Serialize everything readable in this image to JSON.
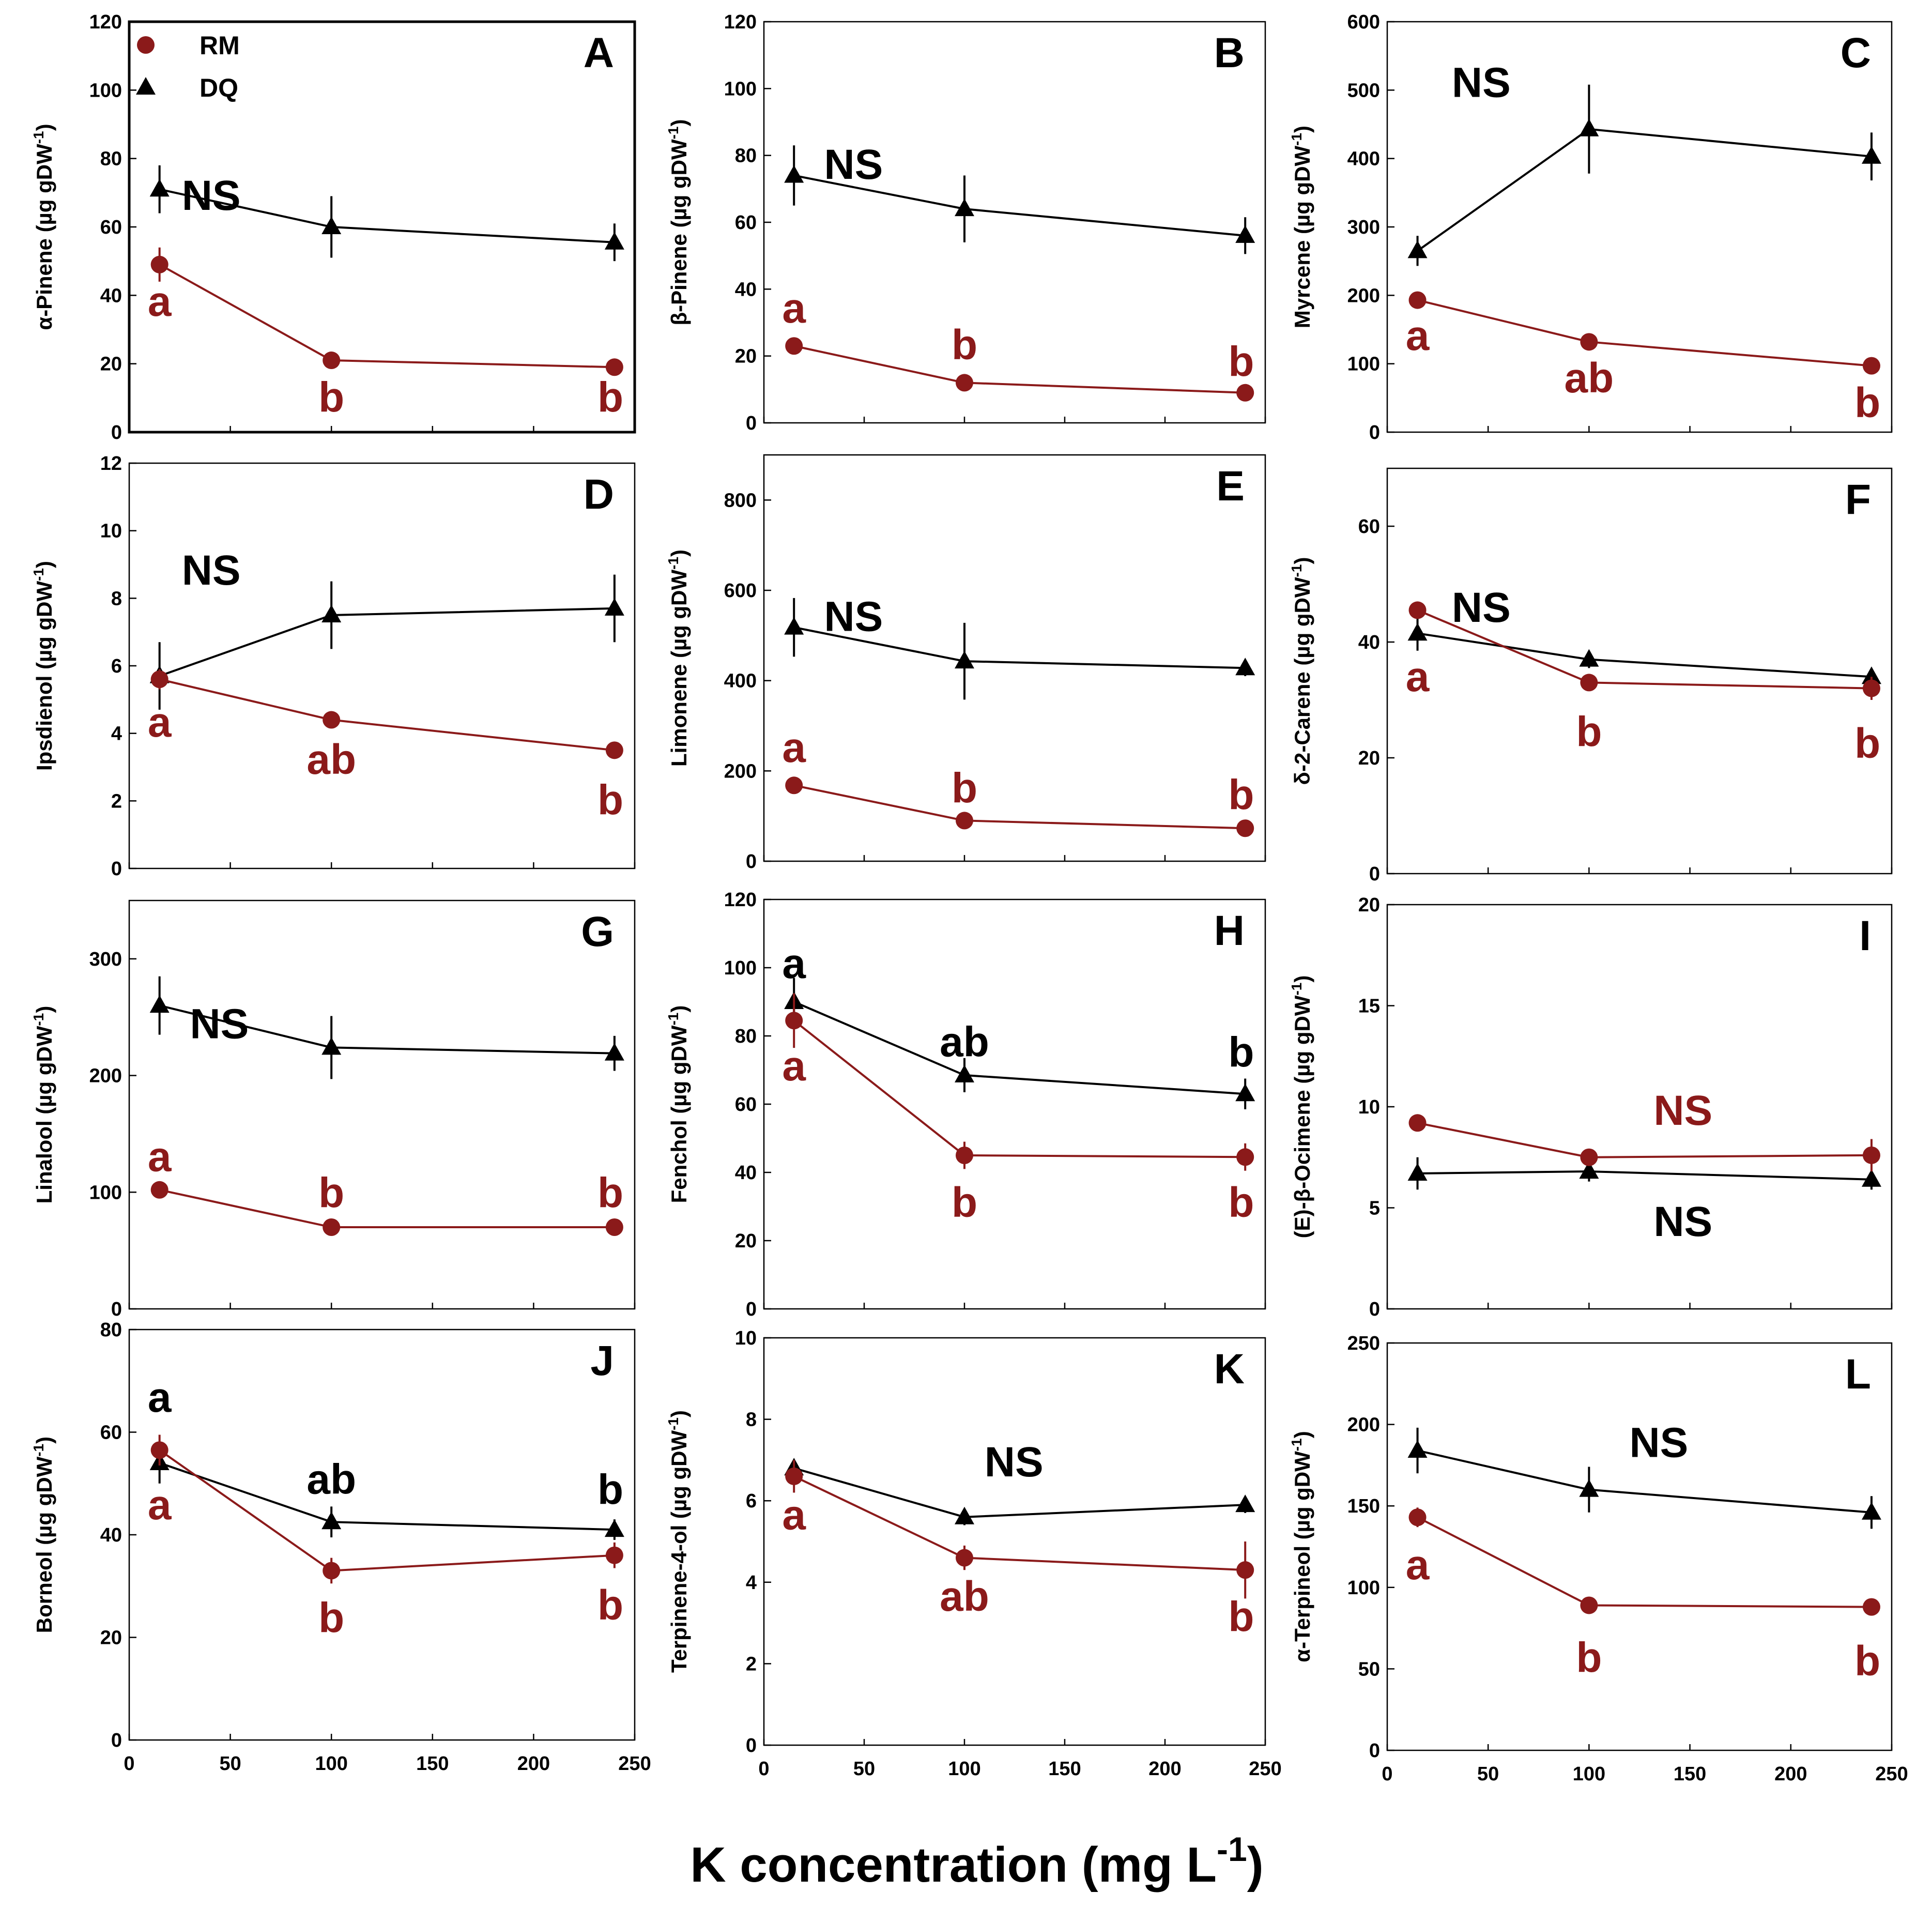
{
  "figure": {
    "xlabel": "K concentration (mg L",
    "xlabel_sup": "-1",
    "xlabel_close": ")"
  },
  "colors": {
    "RM": "#8b1a1a",
    "DQ": "#000000"
  },
  "chart_data": [
    {
      "letter": "A",
      "ylabel": "α-Pinene (µg gDW",
      "ylim": [
        0,
        120
      ],
      "yticks": [
        0,
        20,
        40,
        60,
        80,
        100,
        120
      ],
      "xlim": [
        0,
        250
      ],
      "xticks": [],
      "legend": [
        {
          "name": "RM",
          "marker": "circle"
        },
        {
          "name": "DQ",
          "marker": "triangle"
        }
      ],
      "series": [
        {
          "name": "DQ",
          "x": [
            15,
            100,
            240
          ],
          "y": [
            71,
            60,
            55.5
          ],
          "err": [
            7,
            9,
            5.5
          ]
        },
        {
          "name": "RM",
          "x": [
            15,
            100,
            240
          ],
          "y": [
            49,
            21,
            19
          ],
          "err": [
            5,
            2,
            1.5
          ]
        }
      ],
      "annotations": [
        {
          "text": "NS",
          "x": 26,
          "y": 65,
          "color": "DQ"
        },
        {
          "text": "a",
          "x": 15,
          "y": 34,
          "color": "RM"
        },
        {
          "text": "b",
          "x": 100,
          "y": 6,
          "color": "RM"
        },
        {
          "text": "b",
          "x": 238,
          "y": 6,
          "color": "RM"
        }
      ]
    },
    {
      "letter": "B",
      "ylabel": "β-Pinene (µg gDW",
      "ylim": [
        0,
        120
      ],
      "yticks": [
        0,
        20,
        40,
        60,
        80,
        100,
        120
      ],
      "xlim": [
        0,
        250
      ],
      "xticks": [],
      "series": [
        {
          "name": "DQ",
          "x": [
            15,
            100,
            240
          ],
          "y": [
            74,
            64,
            56
          ],
          "err": [
            9,
            10,
            5.5
          ]
        },
        {
          "name": "RM",
          "x": [
            15,
            100,
            240
          ],
          "y": [
            23,
            12,
            9
          ],
          "err": [
            2,
            1.5,
            1
          ]
        }
      ],
      "annotations": [
        {
          "text": "NS",
          "x": 30,
          "y": 73,
          "color": "DQ"
        },
        {
          "text": "a",
          "x": 15,
          "y": 30,
          "color": "RM"
        },
        {
          "text": "b",
          "x": 100,
          "y": 19,
          "color": "RM"
        },
        {
          "text": "b",
          "x": 238,
          "y": 14,
          "color": "RM"
        }
      ]
    },
    {
      "letter": "C",
      "ylabel": "Myrcene (µg gDW",
      "ylim": [
        0,
        600
      ],
      "yticks": [
        0,
        100,
        200,
        300,
        400,
        500,
        600
      ],
      "xlim": [
        0,
        250
      ],
      "xticks": [],
      "series": [
        {
          "name": "DQ",
          "x": [
            15,
            100,
            240
          ],
          "y": [
            265,
            443,
            403
          ],
          "err": [
            22,
            65,
            35
          ]
        },
        {
          "name": "RM",
          "x": [
            15,
            100,
            240
          ],
          "y": [
            193,
            132,
            97
          ],
          "err": [
            8,
            12,
            6
          ]
        }
      ],
      "annotations": [
        {
          "text": "NS",
          "x": 32,
          "y": 490,
          "color": "DQ"
        },
        {
          "text": "a",
          "x": 15,
          "y": 120,
          "color": "RM"
        },
        {
          "text": "ab",
          "x": 100,
          "y": 58,
          "color": "RM"
        },
        {
          "text": "b",
          "x": 238,
          "y": 22,
          "color": "RM"
        }
      ]
    },
    {
      "letter": "D",
      "ylabel": "Ipsdienol (µg gDW",
      "ylim": [
        0,
        12
      ],
      "yticks": [
        0,
        2,
        4,
        6,
        8,
        10,
        12
      ],
      "xlim": [
        0,
        250
      ],
      "xticks": [],
      "series": [
        {
          "name": "DQ",
          "x": [
            15,
            100,
            240
          ],
          "y": [
            5.7,
            7.5,
            7.7
          ],
          "err": [
            1,
            1,
            1
          ]
        },
        {
          "name": "RM",
          "x": [
            15,
            100,
            240
          ],
          "y": [
            5.6,
            4.4,
            3.5
          ],
          "err": [
            0.3,
            0.2,
            0.2
          ]
        }
      ],
      "annotations": [
        {
          "text": "NS",
          "x": 26,
          "y": 8.4,
          "color": "DQ"
        },
        {
          "text": "a",
          "x": 15,
          "y": 3.9,
          "color": "RM"
        },
        {
          "text": "ab",
          "x": 100,
          "y": 2.8,
          "color": "RM"
        },
        {
          "text": "b",
          "x": 238,
          "y": 1.6,
          "color": "RM"
        }
      ]
    },
    {
      "letter": "E",
      "ylabel": "Limonene (µg gDW",
      "ylim": [
        0,
        900
      ],
      "yticks": [
        0,
        200,
        400,
        600,
        800
      ],
      "xlim": [
        0,
        250
      ],
      "xticks": [],
      "series": [
        {
          "name": "DQ",
          "x": [
            15,
            100,
            240
          ],
          "y": [
            518,
            443,
            428
          ],
          "err": [
            65,
            85,
            18
          ]
        },
        {
          "name": "RM",
          "x": [
            15,
            100,
            240
          ],
          "y": [
            168,
            90,
            73
          ],
          "err": [
            10,
            8,
            6
          ]
        }
      ],
      "annotations": [
        {
          "text": "NS",
          "x": 30,
          "y": 510,
          "color": "DQ"
        },
        {
          "text": "a",
          "x": 15,
          "y": 220,
          "color": "RM"
        },
        {
          "text": "b",
          "x": 100,
          "y": 130,
          "color": "RM"
        },
        {
          "text": "b",
          "x": 238,
          "y": 115,
          "color": "RM"
        }
      ]
    },
    {
      "letter": "F",
      "ylabel": "δ-2-Carene (µg gDW",
      "ylim": [
        0,
        70
      ],
      "yticks": [
        0,
        20,
        40,
        60
      ],
      "xlim": [
        0,
        250
      ],
      "xticks": [],
      "series": [
        {
          "name": "DQ",
          "x": [
            15,
            100,
            240
          ],
          "y": [
            41.5,
            37,
            34
          ],
          "err": [
            3,
            1.5,
            1.2
          ]
        },
        {
          "name": "RM",
          "x": [
            15,
            100,
            240
          ],
          "y": [
            45.5,
            33,
            32
          ],
          "err": [
            1.2,
            1.2,
            2
          ]
        }
      ],
      "annotations": [
        {
          "text": "NS",
          "x": 32,
          "y": 43.5,
          "color": "DQ"
        },
        {
          "text": "a",
          "x": 15,
          "y": 31.5,
          "color": "RM"
        },
        {
          "text": "b",
          "x": 100,
          "y": 22,
          "color": "RM"
        },
        {
          "text": "b",
          "x": 238,
          "y": 20,
          "color": "RM"
        }
      ]
    },
    {
      "letter": "G",
      "ylabel": "Linalool (µg gDW",
      "ylim": [
        0,
        350
      ],
      "yticks": [
        0,
        100,
        200,
        300
      ],
      "xlim": [
        0,
        250
      ],
      "xticks": [],
      "series": [
        {
          "name": "DQ",
          "x": [
            15,
            100,
            240
          ],
          "y": [
            260,
            224,
            219
          ],
          "err": [
            25,
            27,
            15
          ]
        },
        {
          "name": "RM",
          "x": [
            15,
            100,
            240
          ],
          "y": [
            102,
            70,
            70
          ],
          "err": [
            4,
            4,
            4
          ]
        }
      ],
      "annotations": [
        {
          "text": "NS",
          "x": 30,
          "y": 232,
          "color": "DQ"
        },
        {
          "text": "a",
          "x": 15,
          "y": 118,
          "color": "RM"
        },
        {
          "text": "b",
          "x": 100,
          "y": 87,
          "color": "RM"
        },
        {
          "text": "b",
          "x": 238,
          "y": 87,
          "color": "RM"
        }
      ]
    },
    {
      "letter": "H",
      "ylabel": "Fenchol (µg gDW",
      "ylim": [
        0,
        120
      ],
      "yticks": [
        0,
        20,
        40,
        60,
        80,
        100,
        120
      ],
      "xlim": [
        0,
        250
      ],
      "xticks": [],
      "series": [
        {
          "name": "DQ",
          "x": [
            15,
            100,
            240
          ],
          "y": [
            90,
            68.5,
            63
          ],
          "err": [
            7,
            5,
            4.5
          ]
        },
        {
          "name": "RM",
          "x": [
            15,
            100,
            240
          ],
          "y": [
            84.5,
            45,
            44.5
          ],
          "err": [
            8,
            4,
            4
          ]
        }
      ],
      "annotations": [
        {
          "text": "a",
          "x": 15,
          "y": 97,
          "color": "DQ"
        },
        {
          "text": "ab",
          "x": 100,
          "y": 74,
          "color": "DQ"
        },
        {
          "text": "b",
          "x": 238,
          "y": 71,
          "color": "DQ"
        },
        {
          "text": "a",
          "x": 15,
          "y": 67,
          "color": "RM"
        },
        {
          "text": "b",
          "x": 100,
          "y": 27,
          "color": "RM"
        },
        {
          "text": "b",
          "x": 238,
          "y": 27,
          "color": "RM"
        }
      ]
    },
    {
      "letter": "I",
      "ylabel": "(E)-β-Ocimene (µg gDW",
      "ylim": [
        0,
        20
      ],
      "yticks": [
        0,
        5,
        10,
        15,
        20
      ],
      "xlim": [
        0,
        250
      ],
      "xticks": [],
      "series": [
        {
          "name": "DQ",
          "x": [
            15,
            100,
            240
          ],
          "y": [
            6.7,
            6.8,
            6.4
          ],
          "err": [
            0.8,
            0.5,
            0.5
          ]
        },
        {
          "name": "RM",
          "x": [
            15,
            100,
            240
          ],
          "y": [
            9.2,
            7.5,
            7.6
          ],
          "err": [
            0.3,
            0.3,
            0.8
          ]
        }
      ],
      "annotations": [
        {
          "text": "NS",
          "x": 132,
          "y": 9.1,
          "color": "RM"
        },
        {
          "text": "NS",
          "x": 132,
          "y": 3.6,
          "color": "DQ"
        }
      ]
    },
    {
      "letter": "J",
      "ylabel": "Borneol (µg gDW",
      "ylim": [
        0,
        80
      ],
      "yticks": [
        0,
        20,
        40,
        60,
        80
      ],
      "xlim": [
        0,
        250
      ],
      "xticks": [
        0,
        50,
        100,
        150,
        200,
        250
      ],
      "series": [
        {
          "name": "DQ",
          "x": [
            15,
            100,
            240
          ],
          "y": [
            54,
            42.5,
            41
          ],
          "err": [
            4,
            3,
            2
          ]
        },
        {
          "name": "RM",
          "x": [
            15,
            100,
            240
          ],
          "y": [
            56.5,
            33,
            36
          ],
          "err": [
            3,
            2.5,
            2.5
          ]
        }
      ],
      "annotations": [
        {
          "text": "a",
          "x": 15,
          "y": 64,
          "color": "DQ"
        },
        {
          "text": "ab",
          "x": 100,
          "y": 48,
          "color": "DQ"
        },
        {
          "text": "b",
          "x": 238,
          "y": 46,
          "color": "DQ"
        },
        {
          "text": "a",
          "x": 15,
          "y": 43,
          "color": "RM"
        },
        {
          "text": "b",
          "x": 100,
          "y": 21,
          "color": "RM"
        },
        {
          "text": "b",
          "x": 238,
          "y": 23.5,
          "color": "RM"
        }
      ]
    },
    {
      "letter": "K",
      "ylabel": "Terpinene-4-ol (µg gDW",
      "ylim": [
        0,
        10
      ],
      "yticks": [
        0,
        2,
        4,
        6,
        8,
        10
      ],
      "xlim": [
        0,
        250
      ],
      "xticks": [
        0,
        50,
        100,
        150,
        200,
        250
      ],
      "series": [
        {
          "name": "DQ",
          "x": [
            15,
            100,
            240
          ],
          "y": [
            6.8,
            5.6,
            5.9
          ],
          "err": [
            0.2,
            0.2,
            0.2
          ]
        },
        {
          "name": "RM",
          "x": [
            15,
            100,
            240
          ],
          "y": [
            6.6,
            4.6,
            4.3
          ],
          "err": [
            0.4,
            0.3,
            0.7
          ]
        }
      ],
      "annotations": [
        {
          "text": "NS",
          "x": 110,
          "y": 6.6,
          "color": "DQ"
        },
        {
          "text": "a",
          "x": 15,
          "y": 5.3,
          "color": "RM"
        },
        {
          "text": "ab",
          "x": 100,
          "y": 3.3,
          "color": "RM"
        },
        {
          "text": "b",
          "x": 238,
          "y": 2.8,
          "color": "RM"
        }
      ]
    },
    {
      "letter": "L",
      "ylabel": "α-Terpineol (µg gDW",
      "ylim": [
        0,
        250
      ],
      "yticks": [
        0,
        50,
        100,
        150,
        200,
        250
      ],
      "xlim": [
        0,
        250
      ],
      "xticks": [
        0,
        50,
        100,
        150,
        200,
        250
      ],
      "series": [
        {
          "name": "DQ",
          "x": [
            15,
            100,
            240
          ],
          "y": [
            184,
            160,
            146
          ],
          "err": [
            14,
            14,
            10
          ]
        },
        {
          "name": "RM",
          "x": [
            15,
            100,
            240
          ],
          "y": [
            143,
            89,
            88
          ],
          "err": [
            6,
            4,
            5
          ]
        }
      ],
      "annotations": [
        {
          "text": "NS",
          "x": 120,
          "y": 180,
          "color": "DQ"
        },
        {
          "text": "a",
          "x": 15,
          "y": 105,
          "color": "RM"
        },
        {
          "text": "b",
          "x": 100,
          "y": 48,
          "color": "RM"
        },
        {
          "text": "b",
          "x": 238,
          "y": 46,
          "color": "RM"
        }
      ]
    }
  ]
}
